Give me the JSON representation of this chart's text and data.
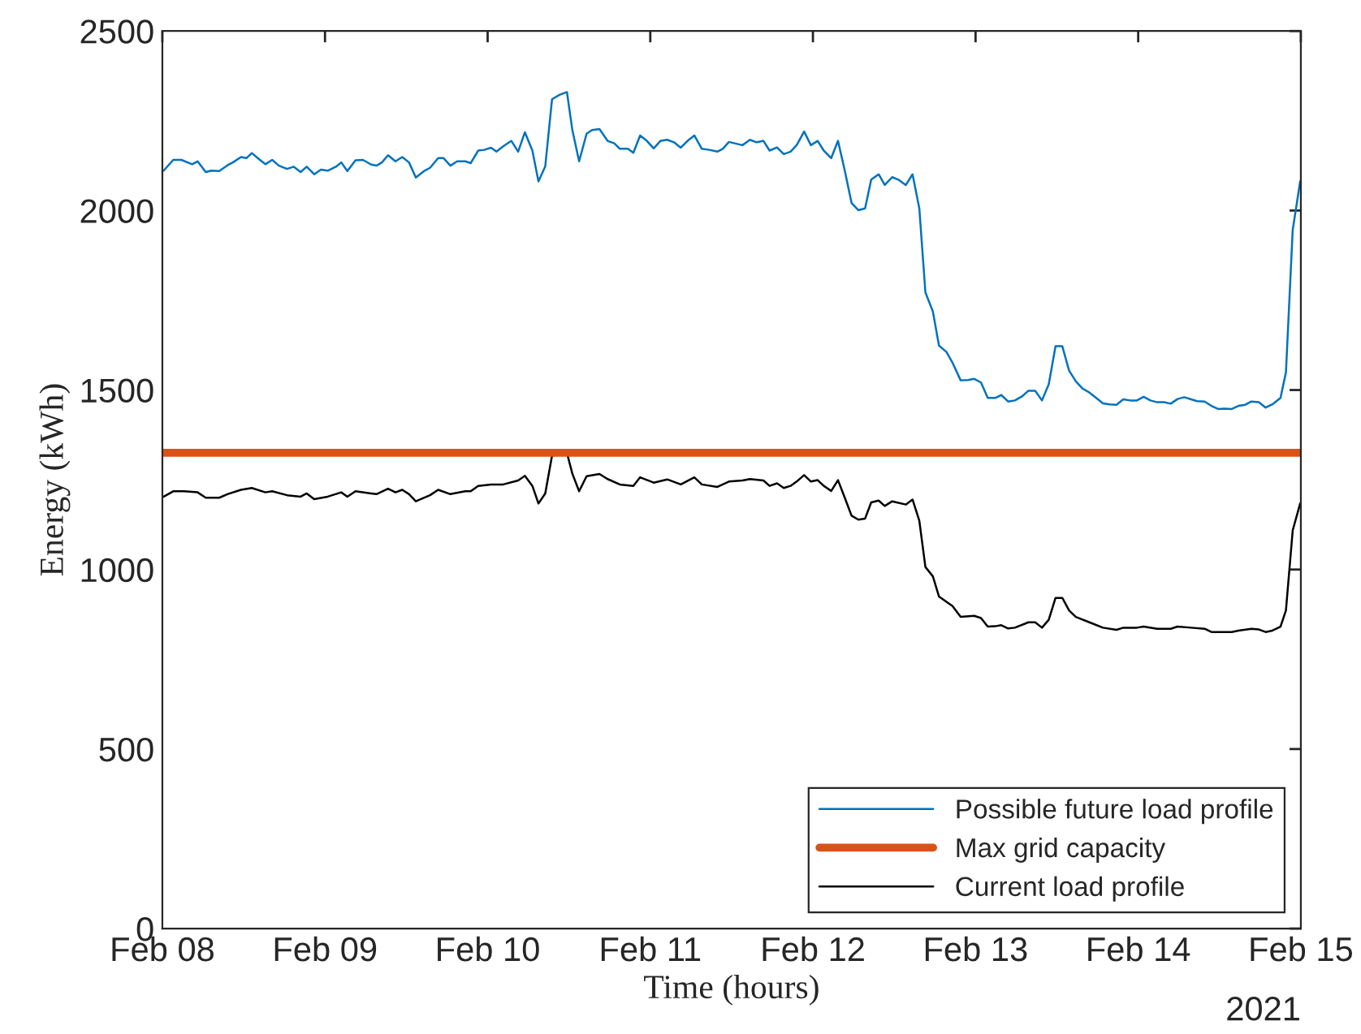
{
  "chart_data": {
    "type": "line",
    "xlabel": "Time (hours)",
    "ylabel": "Energy (kWh)",
    "xlim": [
      "2021-02-08",
      "2021-02-15"
    ],
    "xticks": [
      {
        "value": "2021-02-08",
        "label": "Feb 08"
      },
      {
        "value": "2021-02-09",
        "label": "Feb 09"
      },
      {
        "value": "2021-02-10",
        "label": "Feb 10"
      },
      {
        "value": "2021-02-11",
        "label": "Feb 11"
      },
      {
        "value": "2021-02-12",
        "label": "Feb 12"
      },
      {
        "value": "2021-02-13",
        "label": "Feb 13"
      },
      {
        "value": "2021-02-14",
        "label": "Feb 14"
      },
      {
        "value": "2021-02-15",
        "label": "Feb 15"
      }
    ],
    "ylim": [
      0,
      2500
    ],
    "yticks": [
      0,
      500,
      1000,
      1500,
      2000,
      2500
    ],
    "grid": false,
    "legend": "bottom right",
    "marker": "none",
    "line_style": "solid",
    "annotations": [
      "2021"
    ],
    "ref_lines": [
      {
        "axis": "y",
        "value": 1325,
        "label": "Max grid capacity",
        "color": "#d95319"
      }
    ],
    "series": [
      {
        "name": "Possible future load profile",
        "color": "#0072bd",
        "x": [
          "2021-02-08T00:12",
          "2021-02-08T01:36",
          "2021-02-08T02:48",
          "2021-02-08T04:24",
          "2021-02-08T05:12",
          "2021-02-08T06:24",
          "2021-02-08T07:12",
          "2021-02-08T08:24",
          "2021-02-08T09:36",
          "2021-02-08T10:24",
          "2021-02-08T11:36",
          "2021-02-08T12:24",
          "2021-02-08T13:12",
          "2021-02-08T14:24",
          "2021-02-08T15:12",
          "2021-02-08T16:12",
          "2021-02-08T17:12",
          "2021-02-08T18:24",
          "2021-02-08T19:24",
          "2021-02-08T20:24",
          "2021-02-08T21:18",
          "2021-02-08T22:24",
          "2021-02-08T23:24",
          "2021-02-09T00:24",
          "2021-02-09T01:36",
          "2021-02-09T02:24",
          "2021-02-09T03:18",
          "2021-02-09T04:30",
          "2021-02-09T05:36",
          "2021-02-09T06:48",
          "2021-02-09T07:36",
          "2021-02-09T08:24",
          "2021-02-09T09:18",
          "2021-02-09T10:24",
          "2021-02-09T11:24",
          "2021-02-09T12:24",
          "2021-02-09T13:24",
          "2021-02-09T14:42",
          "2021-02-09T15:30",
          "2021-02-09T16:42",
          "2021-02-09T17:30",
          "2021-02-09T18:30",
          "2021-02-09T19:30",
          "2021-02-09T20:42",
          "2021-02-09T21:30",
          "2021-02-09T22:36",
          "2021-02-09T23:30",
          "2021-02-10T00:30",
          "2021-02-10T01:18",
          "2021-02-10T02:18",
          "2021-02-10T03:30",
          "2021-02-10T04:30",
          "2021-02-10T05:30",
          "2021-02-10T06:36",
          "2021-02-10T07:30",
          "2021-02-10T08:30",
          "2021-02-10T09:30",
          "2021-02-10T10:36",
          "2021-02-10T11:42",
          "2021-02-10T12:30",
          "2021-02-10T13:30",
          "2021-02-10T14:36",
          "2021-02-10T15:24",
          "2021-02-10T16:30",
          "2021-02-10T17:42",
          "2021-02-10T18:42",
          "2021-02-10T19:30",
          "2021-02-10T20:42",
          "2021-02-10T21:30",
          "2021-02-10T22:30",
          "2021-02-10T23:30",
          "2021-02-11T00:30",
          "2021-02-11T01:30",
          "2021-02-11T02:30",
          "2021-02-11T03:30",
          "2021-02-11T04:30",
          "2021-02-11T05:30",
          "2021-02-11T06:30",
          "2021-02-11T07:36",
          "2021-02-11T08:42",
          "2021-02-11T09:54",
          "2021-02-11T10:42",
          "2021-02-11T11:36",
          "2021-02-11T13:36",
          "2021-02-11T14:42",
          "2021-02-11T15:42",
          "2021-02-11T16:42",
          "2021-02-11T17:36",
          "2021-02-11T18:42",
          "2021-02-11T19:42",
          "2021-02-11T20:42",
          "2021-02-11T21:36",
          "2021-02-11T22:42",
          "2021-02-11T23:42",
          "2021-02-12T00:42",
          "2021-02-12T01:36",
          "2021-02-12T02:42",
          "2021-02-12T03:42",
          "2021-02-12T04:42",
          "2021-02-12T05:42",
          "2021-02-12T06:42",
          "2021-02-12T07:42",
          "2021-02-12T08:36",
          "2021-02-12T09:42",
          "2021-02-12T10:36",
          "2021-02-12T11:42",
          "2021-02-12T12:36",
          "2021-02-12T13:42",
          "2021-02-12T14:42",
          "2021-02-12T15:42",
          "2021-02-12T16:36",
          "2021-02-12T17:42",
          "2021-02-12T18:36",
          "2021-02-12T19:42",
          "2021-02-12T20:36",
          "2021-02-12T21:48",
          "2021-02-12T22:54",
          "2021-02-12T23:48",
          "2021-02-13T00:48",
          "2021-02-13T01:48",
          "2021-02-13T02:54",
          "2021-02-13T03:48",
          "2021-02-13T04:48",
          "2021-02-13T05:48",
          "2021-02-13T06:54",
          "2021-02-13T07:48",
          "2021-02-13T08:48",
          "2021-02-13T09:48",
          "2021-02-13T10:48",
          "2021-02-13T11:48",
          "2021-02-13T12:48",
          "2021-02-13T13:48",
          "2021-02-13T14:48",
          "2021-02-13T15:48",
          "2021-02-13T16:48",
          "2021-02-13T17:48",
          "2021-02-13T18:48",
          "2021-02-13T19:48",
          "2021-02-13T20:48",
          "2021-02-13T21:48",
          "2021-02-13T22:48",
          "2021-02-13T23:48",
          "2021-02-14T00:48",
          "2021-02-14T01:48",
          "2021-02-14T02:48",
          "2021-02-14T03:48",
          "2021-02-14T04:48",
          "2021-02-14T05:48",
          "2021-02-14T06:48",
          "2021-02-14T07:48",
          "2021-02-14T08:42",
          "2021-02-14T09:48",
          "2021-02-14T10:48",
          "2021-02-14T11:48",
          "2021-02-14T12:42",
          "2021-02-14T13:48",
          "2021-02-14T14:48",
          "2021-02-14T15:48",
          "2021-02-14T16:42",
          "2021-02-14T17:48",
          "2021-02-14T18:48",
          "2021-02-14T19:48",
          "2021-02-14T21:00",
          "2021-02-14T21:48",
          "2021-02-14T22:48",
          "2021-02-14T23:54"
        ],
        "values": [
          2111,
          2141,
          2141,
          2129,
          2137,
          2107,
          2111,
          2110,
          2126,
          2134,
          2149,
          2146,
          2160,
          2141,
          2129,
          2141,
          2125,
          2116,
          2122,
          2107,
          2122,
          2101,
          2114,
          2111,
          2122,
          2134,
          2110,
          2140,
          2141,
          2128,
          2125,
          2134,
          2154,
          2137,
          2149,
          2134,
          2092,
          2111,
          2119,
          2146,
          2146,
          2125,
          2137,
          2137,
          2132,
          2167,
          2169,
          2175,
          2164,
          2179,
          2194,
          2164,
          2218,
          2167,
          2081,
          2123,
          2310,
          2322,
          2330,
          2224,
          2137,
          2214,
          2224,
          2227,
          2194,
          2187,
          2172,
          2172,
          2161,
          2209,
          2194,
          2173,
          2194,
          2197,
          2190,
          2175,
          2194,
          2209,
          2172,
          2169,
          2164,
          2172,
          2191,
          2182,
          2197,
          2190,
          2194,
          2167,
          2176,
          2157,
          2164,
          2182,
          2220,
          2182,
          2194,
          2167,
          2146,
          2194,
          2111,
          2021,
          2001,
          2006,
          2086,
          2101,
          2071,
          2093,
          2086,
          2071,
          2101,
          2006,
          1772,
          1719,
          1624,
          1606,
          1576,
          1527,
          1528,
          1531,
          1521,
          1478,
          1478,
          1486,
          1468,
          1471,
          1483,
          1498,
          1498,
          1471,
          1516,
          1622,
          1622,
          1554,
          1524,
          1504,
          1493,
          1478,
          1463,
          1460,
          1459,
          1474,
          1471,
          1471,
          1481,
          1471,
          1466,
          1466,
          1462,
          1475,
          1480,
          1474,
          1469,
          1468,
          1456,
          1447,
          1448,
          1447,
          1456,
          1459,
          1468,
          1466,
          1451,
          1460,
          1478,
          1549,
          1946,
          2081
        ]
      },
      {
        "name": "Current load profile",
        "color": "#000000",
        "x": [
          "2021-02-08T00:12",
          "2021-02-08T01:36",
          "2021-02-08T03:12",
          "2021-02-08T05:12",
          "2021-02-08T06:24",
          "2021-02-08T08:24",
          "2021-02-08T09:36",
          "2021-02-08T11:36",
          "2021-02-08T13:12",
          "2021-02-08T15:12",
          "2021-02-08T16:12",
          "2021-02-08T18:24",
          "2021-02-08T20:24",
          "2021-02-08T21:18",
          "2021-02-08T22:24",
          "2021-02-09T00:24",
          "2021-02-09T02:24",
          "2021-02-09T03:18",
          "2021-02-09T04:30",
          "2021-02-09T06:48",
          "2021-02-09T07:36",
          "2021-02-09T09:18",
          "2021-02-09T10:24",
          "2021-02-09T11:24",
          "2021-02-09T12:24",
          "2021-02-09T13:24",
          "2021-02-09T15:30",
          "2021-02-09T16:42",
          "2021-02-09T18:30",
          "2021-02-09T20:42",
          "2021-02-09T21:30",
          "2021-02-09T22:36",
          "2021-02-10T00:30",
          "2021-02-10T02:18",
          "2021-02-10T04:30",
          "2021-02-10T05:30",
          "2021-02-10T06:36",
          "2021-02-10T07:30",
          "2021-02-10T08:30",
          "2021-02-10T09:30",
          "2021-02-10T11:42",
          "2021-02-10T12:30",
          "2021-02-10T13:30",
          "2021-02-10T14:36",
          "2021-02-10T16:30",
          "2021-02-10T17:42",
          "2021-02-10T19:30",
          "2021-02-10T21:30",
          "2021-02-10T22:30",
          "2021-02-11T00:30",
          "2021-02-11T02:30",
          "2021-02-11T04:30",
          "2021-02-11T06:30",
          "2021-02-11T07:36",
          "2021-02-11T09:54",
          "2021-02-11T11:36",
          "2021-02-11T13:36",
          "2021-02-11T14:42",
          "2021-02-11T16:42",
          "2021-02-11T17:36",
          "2021-02-11T18:42",
          "2021-02-11T19:42",
          "2021-02-11T20:42",
          "2021-02-11T21:36",
          "2021-02-11T22:42",
          "2021-02-11T23:42",
          "2021-02-12T00:42",
          "2021-02-12T01:36",
          "2021-02-12T02:42",
          "2021-02-12T03:42",
          "2021-02-12T04:42",
          "2021-02-12T05:42",
          "2021-02-12T06:42",
          "2021-02-12T07:42",
          "2021-02-12T08:36",
          "2021-02-12T09:42",
          "2021-02-12T10:36",
          "2021-02-12T11:42",
          "2021-02-12T13:42",
          "2021-02-12T14:42",
          "2021-02-12T15:42",
          "2021-02-12T16:36",
          "2021-02-12T17:42",
          "2021-02-12T18:36",
          "2021-02-12T20:36",
          "2021-02-12T21:48",
          "2021-02-12T23:48",
          "2021-02-13T00:48",
          "2021-02-13T01:48",
          "2021-02-13T02:54",
          "2021-02-13T03:48",
          "2021-02-13T04:48",
          "2021-02-13T05:48",
          "2021-02-13T07:48",
          "2021-02-13T08:48",
          "2021-02-13T09:48",
          "2021-02-13T10:48",
          "2021-02-13T11:48",
          "2021-02-13T12:48",
          "2021-02-13T13:48",
          "2021-02-13T14:48",
          "2021-02-13T16:48",
          "2021-02-13T18:48",
          "2021-02-13T20:48",
          "2021-02-13T21:48",
          "2021-02-13T23:48",
          "2021-02-14T00:48",
          "2021-02-14T02:48",
          "2021-02-14T04:48",
          "2021-02-14T05:48",
          "2021-02-14T07:48",
          "2021-02-14T09:48",
          "2021-02-14T10:48",
          "2021-02-14T13:48",
          "2021-02-14T14:48",
          "2021-02-14T16:42",
          "2021-02-14T17:48",
          "2021-02-14T18:48",
          "2021-02-14T19:48",
          "2021-02-14T21:00",
          "2021-02-14T21:48",
          "2021-02-14T22:48",
          "2021-02-14T23:54"
        ],
        "values": [
          1203,
          1218,
          1218,
          1215,
          1200,
          1200,
          1210,
          1222,
          1227,
          1215,
          1218,
          1207,
          1203,
          1212,
          1196,
          1203,
          1215,
          1203,
          1218,
          1212,
          1210,
          1225,
          1215,
          1222,
          1210,
          1190,
          1207,
          1222,
          1210,
          1218,
          1218,
          1233,
          1237,
          1237,
          1248,
          1261,
          1233,
          1184,
          1212,
          1317,
          1325,
          1267,
          1218,
          1260,
          1266,
          1252,
          1237,
          1233,
          1257,
          1242,
          1251,
          1237,
          1257,
          1237,
          1230,
          1245,
          1248,
          1252,
          1248,
          1233,
          1240,
          1227,
          1233,
          1245,
          1263,
          1245,
          1249,
          1233,
          1219,
          1249,
          1200,
          1150,
          1139,
          1142,
          1187,
          1192,
          1177,
          1190,
          1181,
          1195,
          1136,
          1007,
          981,
          925,
          898,
          868,
          871,
          865,
          841,
          842,
          845,
          836,
          838,
          853,
          853,
          838,
          860,
          921,
          921,
          886,
          868,
          853,
          838,
          832,
          838,
          838,
          841,
          835,
          835,
          841,
          838,
          835,
          826,
          826,
          830,
          835,
          833,
          826,
          830,
          841,
          886,
          1109,
          1184
        ]
      }
    ]
  }
}
